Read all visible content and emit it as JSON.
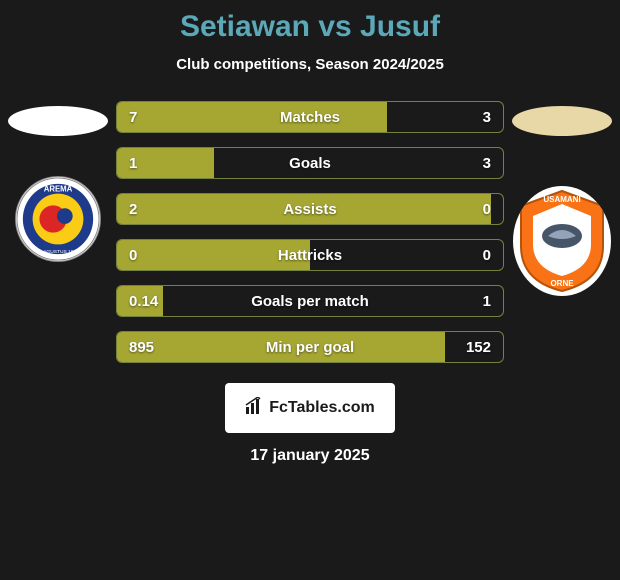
{
  "title": "Setiawan vs Jusuf",
  "subtitle": "Club competitions, Season 2024/2025",
  "logo_text": "FcTables.com",
  "date": "17 january 2025",
  "colors": {
    "background": "#1a1a1a",
    "title": "#5ba8b8",
    "text": "#ffffff",
    "bar_fill": "#a6a733",
    "bar_border": "#73823d",
    "shirt_left": "#ffffff",
    "shirt_right": "#e8d8a8",
    "logo_bg": "#ffffff"
  },
  "badge_left": {
    "outer_ring": "#1e3a8a",
    "inner": "#facc15",
    "text_top": "AREMA",
    "accent": "#dc2626"
  },
  "badge_right": {
    "main": "#f97316",
    "inner": "#ffffff",
    "text_top": "USAMANI",
    "accent": "#475569"
  },
  "stats": [
    {
      "label": "Matches",
      "left_val": "7",
      "right_val": "3",
      "left_pct": 70,
      "right_pct": 30
    },
    {
      "label": "Goals",
      "left_val": "1",
      "right_val": "3",
      "left_pct": 25,
      "right_pct": 75
    },
    {
      "label": "Assists",
      "left_val": "2",
      "right_val": "0",
      "left_pct": 100,
      "right_pct": 0
    },
    {
      "label": "Hattricks",
      "left_val": "0",
      "right_val": "0",
      "left_pct": 50,
      "right_pct": 50
    },
    {
      "label": "Goals per match",
      "left_val": "0.14",
      "right_val": "1",
      "left_pct": 12,
      "right_pct": 88
    },
    {
      "label": "Min per goal",
      "left_val": "895",
      "right_val": "152",
      "left_pct": 85,
      "right_pct": 15
    }
  ]
}
